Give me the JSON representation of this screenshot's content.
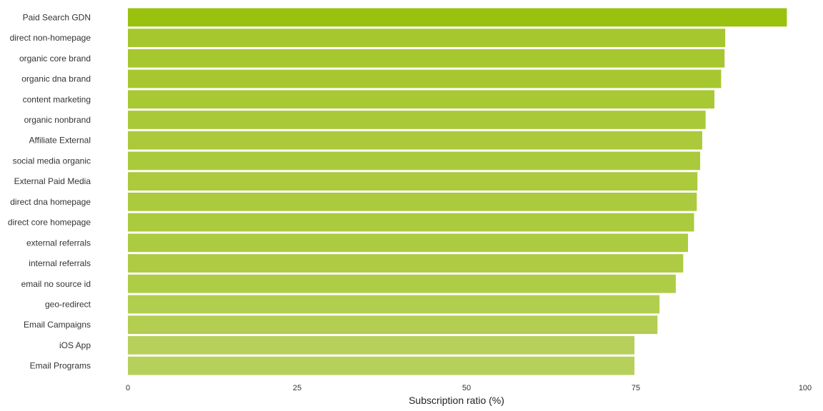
{
  "chart_data": {
    "type": "bar",
    "orientation": "horizontal",
    "categories": [
      "Paid Search GDN",
      "direct non-homepage",
      "organic core brand",
      "organic dna brand",
      "content marketing",
      "organic nonbrand",
      "Affiliate External",
      "social media organic",
      "External Paid Media",
      "direct dna homepage",
      "direct core homepage",
      "external referrals",
      "internal referrals",
      "email no source id",
      "geo-redirect",
      "Email Campaigns",
      "iOS App",
      "Email Programs"
    ],
    "values": [
      97.3,
      88.2,
      88.1,
      87.6,
      86.6,
      85.3,
      84.8,
      84.5,
      84.1,
      84.0,
      83.6,
      82.7,
      82.0,
      80.9,
      78.5,
      78.2,
      74.8,
      74.8
    ],
    "xlabel": "Subscription ratio (%)",
    "ylabel": "",
    "xlim": [
      0,
      100
    ],
    "xticks": [
      "0",
      "25",
      "50",
      "75",
      "100"
    ],
    "grid": false,
    "legend": "none",
    "colors": {
      "bar_high": "#9bc10f",
      "bar_low": "#b7d05c"
    }
  }
}
